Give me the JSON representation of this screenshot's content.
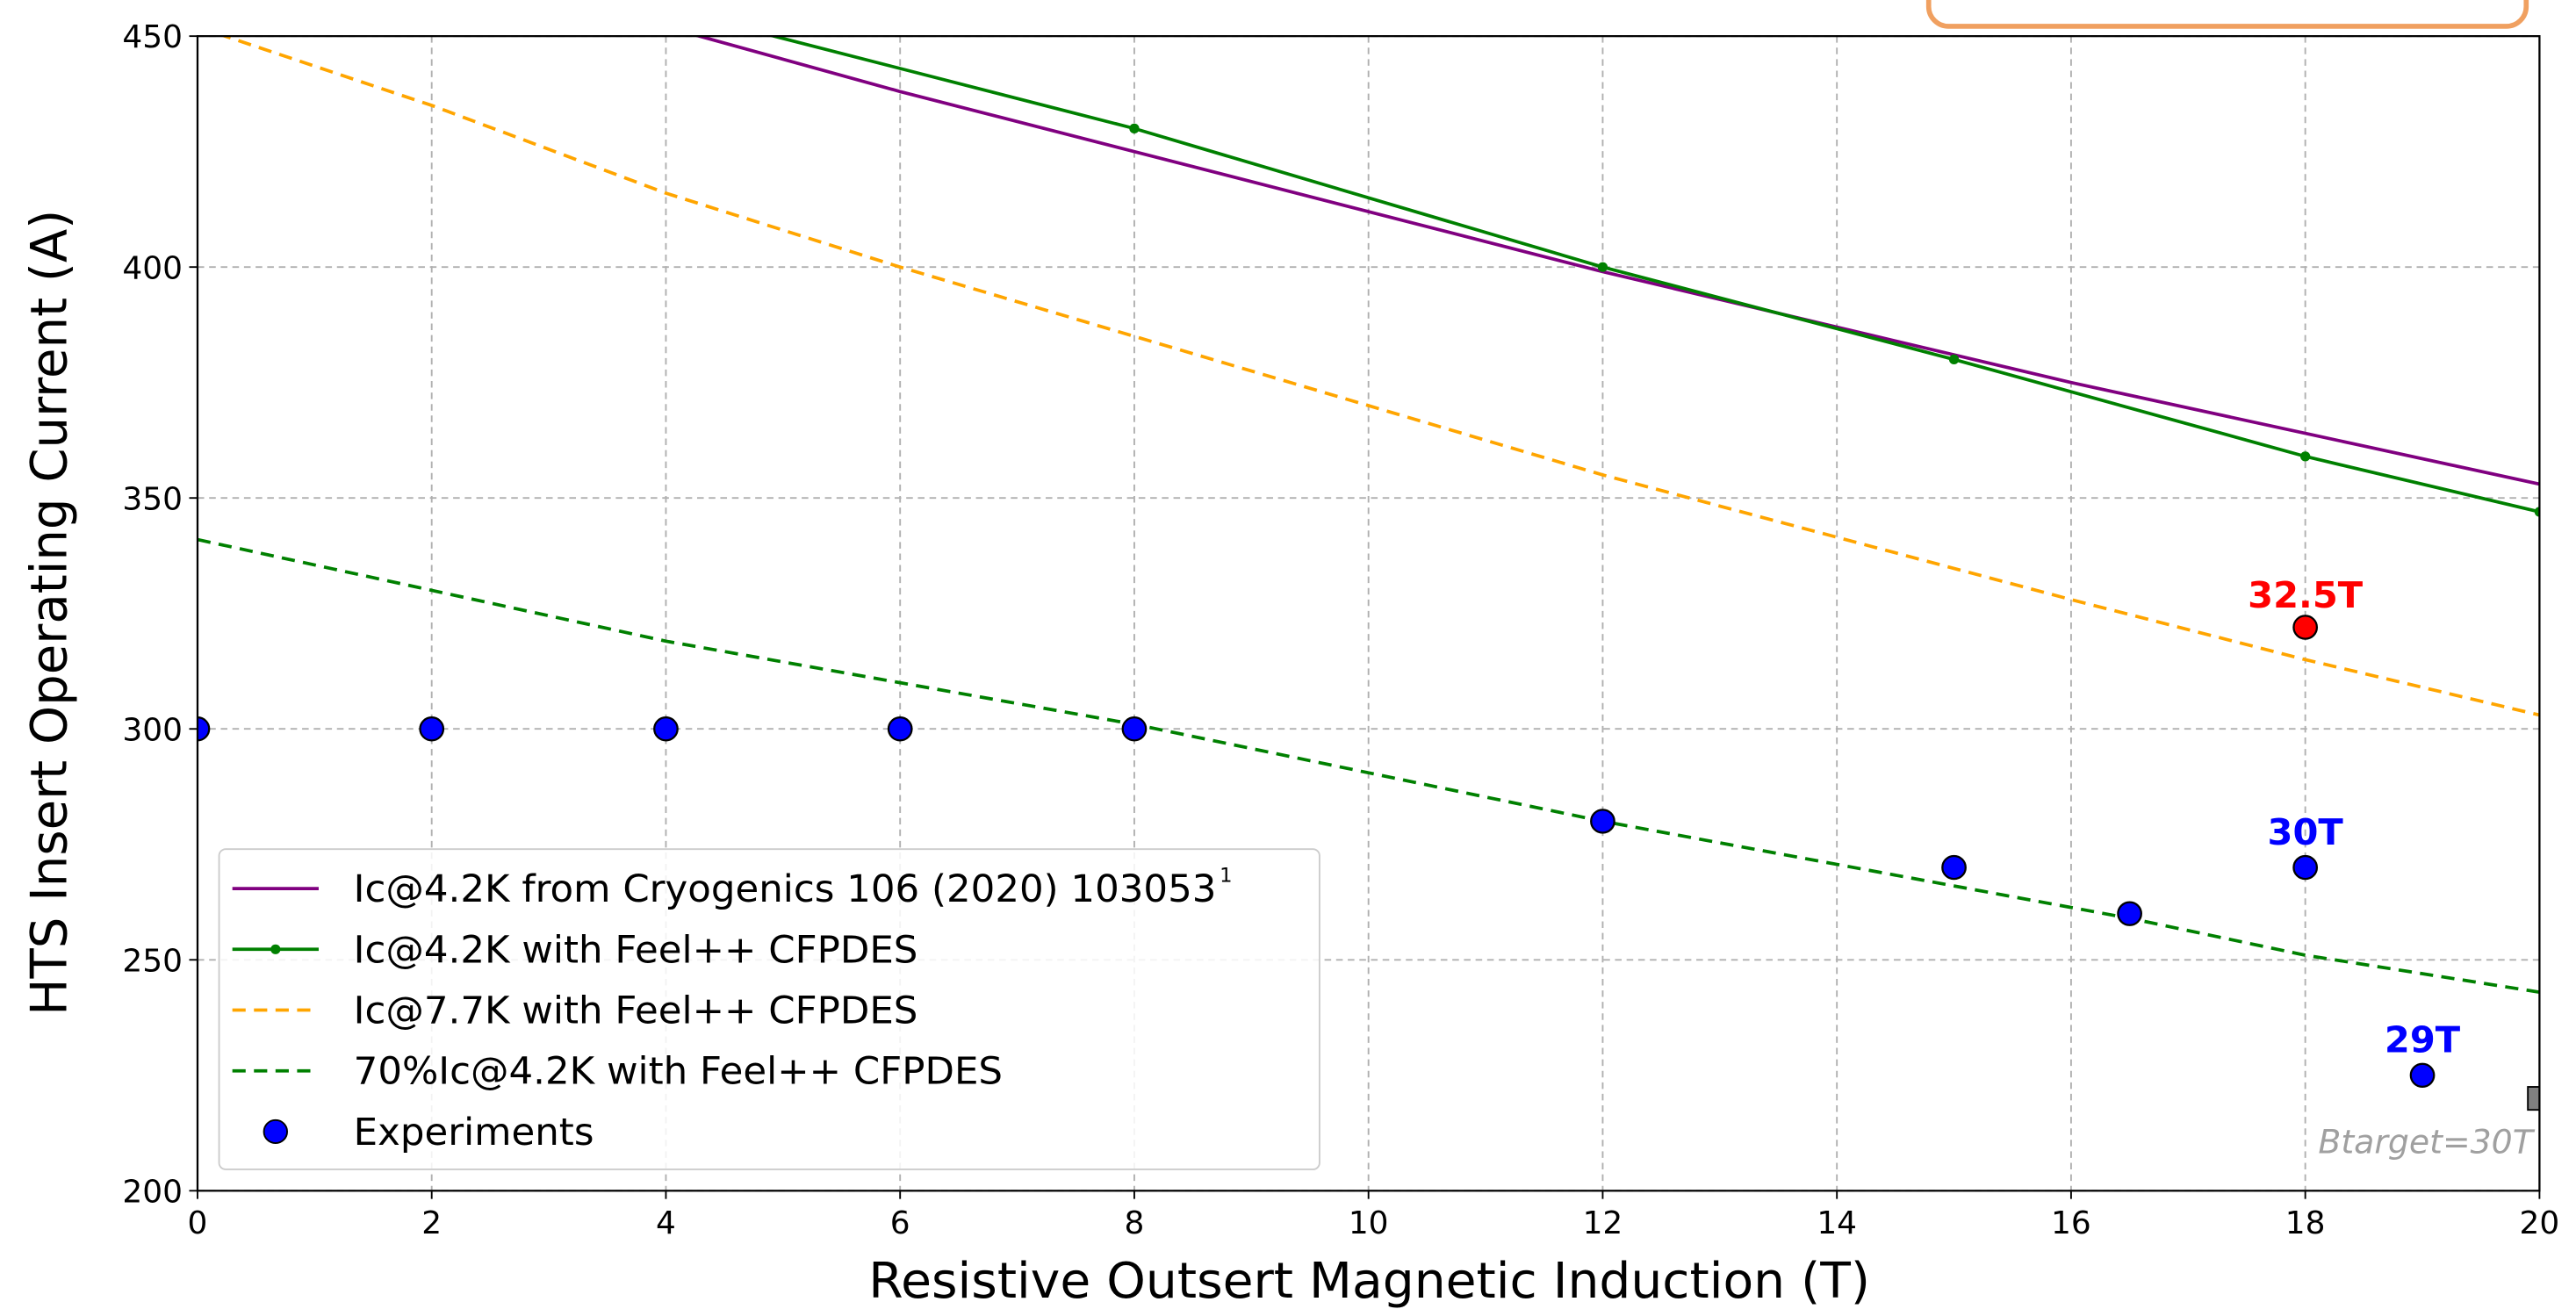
{
  "chart_data": {
    "type": "line",
    "xlabel": "Resistive Outsert Magnetic Induction (T)",
    "ylabel": "HTS Insert Operating Current (A)",
    "xlim": [
      0,
      20
    ],
    "ylim": [
      200,
      450
    ],
    "xticks": [
      0,
      2,
      4,
      6,
      8,
      10,
      12,
      14,
      16,
      18,
      20
    ],
    "yticks": [
      200,
      250,
      300,
      350,
      400,
      450
    ],
    "grid": true,
    "legend": "lower left",
    "series": [
      {
        "name": "Ic@4.2K from Cryogenics 106 (2020) 103053",
        "footnote": "1",
        "color": "#800080",
        "style": "solid",
        "marker": false,
        "x": [
          4,
          6,
          8,
          10,
          12,
          14,
          16,
          18,
          20
        ],
        "values": [
          452,
          438,
          425,
          412,
          399,
          387,
          375,
          364,
          353
        ]
      },
      {
        "name": "Ic@4.2K with Feel++ CFPDES",
        "color": "#008000",
        "style": "solid",
        "marker": true,
        "x": [
          4,
          8,
          12,
          15,
          18,
          20
        ],
        "values": [
          456,
          430,
          400,
          380,
          359,
          347
        ]
      },
      {
        "name": "Ic@7.7K with Feel++ CFPDES",
        "color": "#ffa500",
        "style": "dashed",
        "marker": false,
        "x": [
          0,
          2,
          4,
          6,
          8,
          12,
          16,
          18,
          20
        ],
        "values": [
          452,
          435,
          416,
          400,
          385,
          355,
          328,
          315,
          303
        ]
      },
      {
        "name": "70%Ic@4.2K with Feel++ CFPDES",
        "color": "#008000",
        "style": "dashed",
        "marker": false,
        "x": [
          0,
          2,
          4,
          6,
          8,
          12,
          15,
          16.5,
          18,
          20
        ],
        "values": [
          341,
          330,
          319,
          310,
          301,
          280,
          266,
          259,
          251,
          243
        ]
      },
      {
        "name": "Experiments",
        "color": "#0000ff",
        "style": "scatter",
        "marker": true,
        "x": [
          0,
          2,
          4,
          6,
          8,
          12,
          15,
          16.5,
          18,
          19
        ],
        "values": [
          300,
          300,
          300,
          300,
          300,
          280,
          270,
          260,
          270,
          225
        ]
      }
    ],
    "points": [
      {
        "x": 18,
        "y": 322,
        "color": "#ff0000",
        "label": "32.5T"
      },
      {
        "x": 20,
        "y": 220,
        "color": "#808080",
        "shape": "square"
      }
    ],
    "annotations": [
      {
        "text": "30T",
        "x": 18,
        "y": 270,
        "color": "#0000ff"
      },
      {
        "text": "29T",
        "x": 19,
        "y": 225,
        "color": "#0000ff"
      }
    ],
    "note": "Btarget=30T"
  }
}
